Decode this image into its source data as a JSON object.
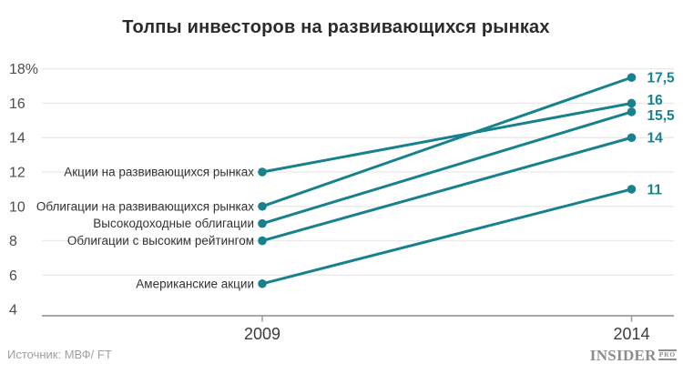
{
  "chart_data": {
    "type": "line",
    "title": "Толпы инвесторов на развивающихся рынках",
    "x_tick_labels": [
      "2009",
      "2014"
    ],
    "y_ticks": [
      4,
      6,
      8,
      10,
      12,
      14,
      16,
      18
    ],
    "y_tick_labels": [
      "4",
      "6",
      "8",
      "10",
      "12",
      "14",
      "16",
      "18%"
    ],
    "ylim": [
      4,
      18
    ],
    "grid": true,
    "legend_position": "inline-left",
    "series": [
      {
        "name": "Акции на развивающихся рынках",
        "values": [
          12,
          16
        ],
        "end_label": "16"
      },
      {
        "name": "Облигации на развивающихся рынках",
        "values": [
          10,
          17.5
        ],
        "end_label": "17,5"
      },
      {
        "name": "Высокодоходные облигации",
        "values": [
          9,
          15.5
        ],
        "end_label": "15,5"
      },
      {
        "name": "Облигации с высоким рейтингом",
        "values": [
          8,
          14
        ],
        "end_label": "14"
      },
      {
        "name": "Американские акции",
        "values": [
          5.5,
          11
        ],
        "end_label": "11"
      }
    ]
  },
  "footer": {
    "source": "Источник: МВФ/ FT",
    "brand": {
      "name": "INSIDER",
      "pro": "PRO"
    }
  },
  "colors": {
    "line": "#17828d",
    "grid": "#eaeaea",
    "axis": "#a5a8ac",
    "tick": "#9b9b9b",
    "title_text": "#2b2b2b",
    "axis_text": "#4d4d4d",
    "label_text": "#333333",
    "source_text": "#a0a0a0",
    "brand_text": "#8d8d8d"
  }
}
